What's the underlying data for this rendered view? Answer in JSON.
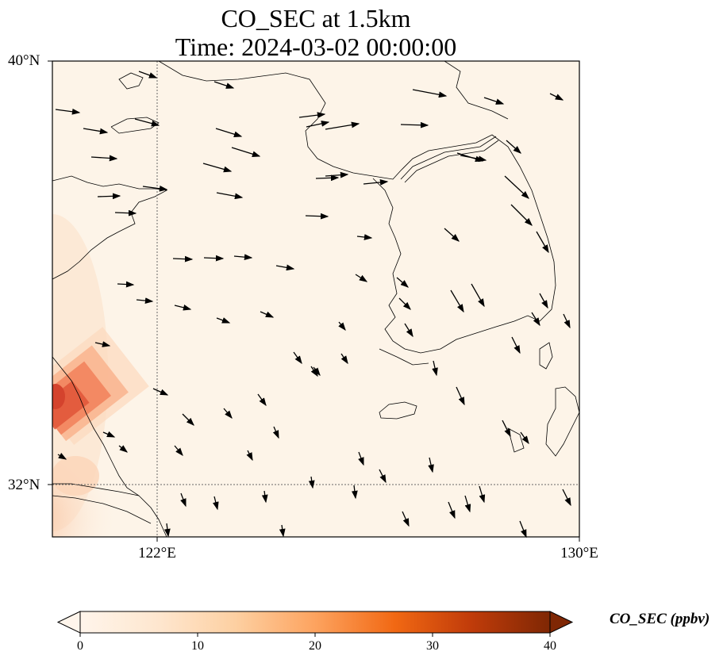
{
  "title": {
    "line1": "CO_SEC at 1.5km",
    "line2": "Time: 2024-03-02 00:00:00"
  },
  "map": {
    "lat_labels": [
      "40°N",
      "32°N"
    ],
    "lon_labels": [
      "122°E",
      "130°E"
    ],
    "lat_range": [
      31,
      40
    ],
    "lon_range": [
      120,
      130
    ],
    "gridlines": {
      "lat": [
        32
      ],
      "lon": [
        122
      ]
    }
  },
  "colorbar": {
    "label": "CO_SEC (ppbv)",
    "ticks": [
      "0",
      "10",
      "20",
      "30",
      "40"
    ],
    "range": [
      0,
      40
    ],
    "colormap": [
      "#fff5eb",
      "#fdd9b3",
      "#fdab67",
      "#f67c34",
      "#d84801",
      "#9f3303",
      "#7f2704"
    ],
    "extend": "both"
  },
  "plume": {
    "location": "western edge near 31.5–33.5°N, 120–121.5°E",
    "peak_ppbv": 25
  }
}
